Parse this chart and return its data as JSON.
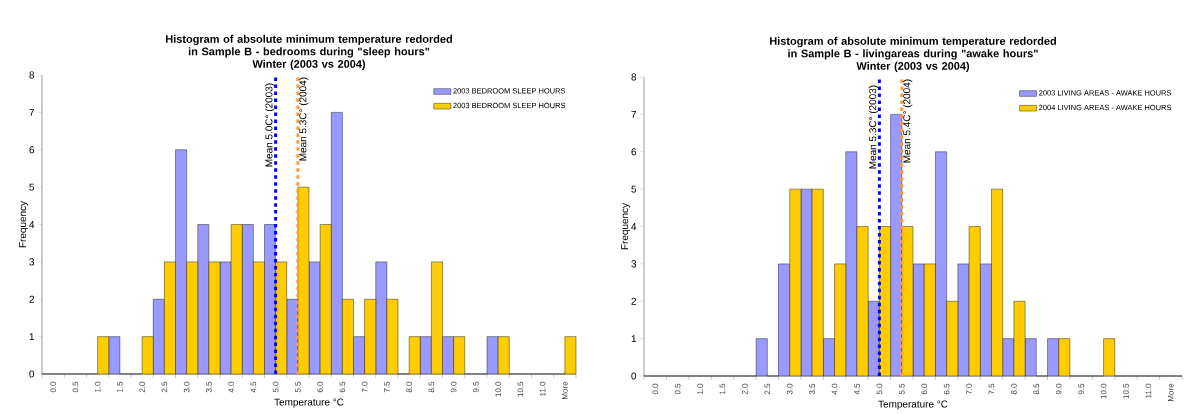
{
  "chart_data": [
    {
      "type": "bar",
      "title": "Histogram of absolute minimum temperature redorded in Sample B - bedrooms during \"sleep hours\"",
      "subtitle": "Winter (2003 vs 2004)",
      "xlabel": "Temperature °C",
      "ylabel": "Frequency",
      "categories": [
        "0.0",
        "0.5",
        "1.0",
        "1.5",
        "2.0",
        "2.5",
        "3.0",
        "3.5",
        "4.0",
        "4.5",
        "5.0",
        "5.5",
        "6.0",
        "6.5",
        "7.0",
        "7.5",
        "8.0",
        "8.5",
        "9.0",
        "9.5",
        "10.0",
        "10.5",
        "11.0",
        "More"
      ],
      "series": [
        {
          "name": "2003 BEDROOM SLEEP HOURS",
          "color": "#9999ff",
          "values": [
            0,
            0,
            0,
            1,
            0,
            2,
            6,
            4,
            3,
            4,
            4,
            2,
            3,
            7,
            1,
            3,
            0,
            1,
            1,
            0,
            1,
            0,
            0,
            0
          ]
        },
        {
          "name": "2003 BEDROOM SLEEP HOURS",
          "color": "#ffcc00",
          "values": [
            0,
            0,
            1,
            0,
            1,
            3,
            3,
            3,
            4,
            3,
            3,
            5,
            4,
            2,
            2,
            2,
            1,
            3,
            1,
            0,
            1,
            0,
            0,
            1
          ]
        }
      ],
      "ylim": [
        0,
        8
      ],
      "yticks": [
        0,
        1,
        2,
        3,
        4,
        5,
        6,
        7,
        8
      ],
      "legend": "top right",
      "ref_lines": [
        {
          "axis": "x",
          "value": "5.0",
          "label": "Mean 5.0C° (2003)",
          "color": "#0000ff",
          "line_style": "dotted"
        },
        {
          "axis": "x",
          "value": "5.5",
          "label": "Mean 5.3C° (2004)",
          "color": "#ff9933",
          "line_style": "dotted"
        }
      ]
    },
    {
      "type": "bar",
      "title": "Histogram of absolute minimum temperature redorded in Sample B - livingareas during \"awake hours\"",
      "subtitle": "Winter (2003 vs 2004)",
      "xlabel": "Temperature °C",
      "ylabel": "Frequency",
      "categories": [
        "0.0",
        "0.5",
        "1.0",
        "1.5",
        "2.0",
        "2.5",
        "3.0",
        "3.5",
        "4.0",
        "4.5",
        "5.0",
        "5.5",
        "6.0",
        "6.5",
        "7.0",
        "7.5",
        "8.0",
        "8.5",
        "9.0",
        "9.5",
        "10.0",
        "10.5",
        "11.0",
        "More"
      ],
      "series": [
        {
          "name": "2003 LIVING AREAS - AWAKE HOURS",
          "color": "#9999ff",
          "values": [
            0,
            0,
            0,
            0,
            0,
            1,
            3,
            5,
            1,
            6,
            2,
            7,
            3,
            6,
            3,
            3,
            1,
            1,
            1,
            0,
            0,
            0,
            0,
            0
          ]
        },
        {
          "name": "2004 LIVING AREAS - AWAKE HOURS",
          "color": "#ffcc00",
          "values": [
            0,
            0,
            0,
            0,
            0,
            0,
            5,
            5,
            3,
            4,
            4,
            4,
            3,
            2,
            4,
            5,
            2,
            0,
            1,
            0,
            1,
            0,
            0,
            0
          ]
        }
      ],
      "ylim": [
        0,
        8
      ],
      "yticks": [
        0,
        1,
        2,
        3,
        4,
        5,
        6,
        7,
        8
      ],
      "legend": "top right",
      "ref_lines": [
        {
          "axis": "x",
          "value": "5.0",
          "label": "Mean 5.3C° (2003)",
          "color": "#0000ff",
          "line_style": "dotted"
        },
        {
          "axis": "x",
          "value": "5.5",
          "label": "Mean 5.4C° (2004)",
          "color": "#ff9933",
          "line_style": "dotted"
        }
      ]
    }
  ]
}
